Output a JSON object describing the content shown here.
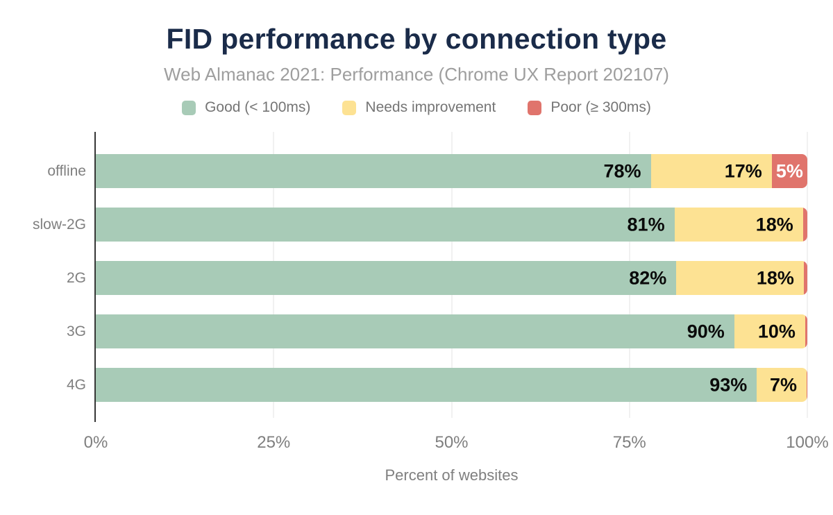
{
  "header": {
    "title": "FID performance by connection type",
    "subtitle": "Web Almanac 2021: Performance (Chrome UX Report 202107)"
  },
  "legend": {
    "items": [
      {
        "label": "Good (< 100ms)",
        "color": "#a8cbb7"
      },
      {
        "label": "Needs improvement",
        "color": "#fde293"
      },
      {
        "label": "Poor (≥ 300ms)",
        "color": "#e0746c"
      }
    ]
  },
  "chart_data": {
    "type": "bar",
    "stacked": true,
    "orientation": "horizontal",
    "title": "FID performance by connection type",
    "subtitle": "Web Almanac 2021: Performance (Chrome UX Report 202107)",
    "xlabel": "Percent of websites",
    "ylabel": "",
    "xlim": [
      0,
      100
    ],
    "xticks": [
      "0%",
      "25%",
      "50%",
      "75%",
      "100%"
    ],
    "grid": "vertical",
    "legend_position": "top",
    "categories": [
      "offline",
      "slow-2G",
      "2G",
      "3G",
      "4G"
    ],
    "series": [
      {
        "key": "good",
        "name": "Good (< 100ms)",
        "color": "#a8cbb7",
        "values": [
          78,
          81,
          82,
          90,
          93
        ]
      },
      {
        "key": "needs-improvement",
        "name": "Needs improvement",
        "color": "#fde293",
        "values": [
          17,
          18,
          18,
          10,
          7
        ]
      },
      {
        "key": "poor",
        "name": "Poor (≥ 300ms)",
        "color": "#e0746c",
        "values": [
          5,
          0.6,
          0.5,
          0.3,
          0.1
        ]
      }
    ],
    "data_labels": [
      [
        "78%",
        "17%",
        "5%"
      ],
      [
        "81%",
        "18%",
        ""
      ],
      [
        "82%",
        "18%",
        ""
      ],
      [
        "90%",
        "10%",
        ""
      ],
      [
        "93%",
        "7%",
        ""
      ]
    ],
    "colors": {
      "title": "#1a2b49",
      "subtitle": "#9e9e9e",
      "axis_text": "#7f7f7f",
      "axis_line": "#363636",
      "gridline": "#f1f1f1",
      "data_label": "#0a0a0a",
      "data_label_on_poor": "#ffffff"
    }
  }
}
